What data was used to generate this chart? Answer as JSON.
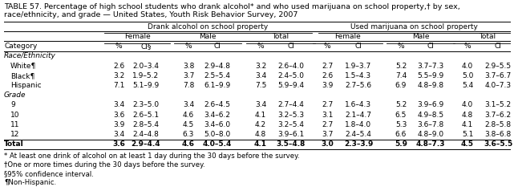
{
  "title_line1": "TABLE 57. Percentage of high school students who drank alcohol* and who used marijuana on school property,† by sex,",
  "title_line2": "race/ethnicity, and grade — United States, Youth Risk Behavior Survey, 2007",
  "col_group1": "Drank alcohol on school property",
  "col_group2": "Used marijuana on school property",
  "sub_groups": [
    "Female",
    "Male",
    "Total",
    "Female",
    "Male",
    "Total"
  ],
  "header_pct_ci": [
    "Category",
    "%",
    "CI§",
    "%",
    "CI",
    "%",
    "CI",
    "%",
    "CI",
    "%",
    "CI",
    "%",
    "CI"
  ],
  "section_race": "Race/Ethnicity",
  "section_grade": "Grade",
  "rows": [
    [
      "White¶",
      "2.6",
      "2.0–3.4",
      "3.8",
      "2.9–4.8",
      "3.2",
      "2.6–4.0",
      "2.7",
      "1.9–3.7",
      "5.2",
      "3.7–7.3",
      "4.0",
      "2.9–5.5"
    ],
    [
      "Black¶",
      "3.2",
      "1.9–5.2",
      "3.7",
      "2.5–5.4",
      "3.4",
      "2.4–5.0",
      "2.6",
      "1.5–4.3",
      "7.4",
      "5.5–9.9",
      "5.0",
      "3.7–6.7"
    ],
    [
      "Hispanic",
      "7.1",
      "5.1–9.9",
      "7.8",
      "6.1–9.9",
      "7.5",
      "5.9–9.4",
      "3.9",
      "2.7–5.6",
      "6.9",
      "4.8–9.8",
      "5.4",
      "4.0–7.3"
    ],
    [
      "9",
      "3.4",
      "2.3–5.0",
      "3.4",
      "2.6–4.5",
      "3.4",
      "2.7–4.4",
      "2.7",
      "1.6–4.3",
      "5.2",
      "3.9–6.9",
      "4.0",
      "3.1–5.2"
    ],
    [
      "10",
      "3.6",
      "2.6–5.1",
      "4.6",
      "3.4–6.2",
      "4.1",
      "3.2–5.3",
      "3.1",
      "2.1–4.7",
      "6.5",
      "4.9–8.5",
      "4.8",
      "3.7–6.2"
    ],
    [
      "11",
      "3.9",
      "2.8–5.4",
      "4.5",
      "3.4–6.0",
      "4.2",
      "3.2–5.4",
      "2.7",
      "1.8–4.0",
      "5.3",
      "3.6–7.8",
      "4.1",
      "2.8–5.8"
    ],
    [
      "12",
      "3.4",
      "2.4–4.8",
      "6.3",
      "5.0–8.0",
      "4.8",
      "3.9–6.1",
      "3.7",
      "2.4–5.4",
      "6.6",
      "4.8–9.0",
      "5.1",
      "3.8–6.8"
    ]
  ],
  "total_row": [
    "Total",
    "3.6",
    "2.9–4.4",
    "4.6",
    "4.0–5.4",
    "4.1",
    "3.5–4.8",
    "3.0",
    "2.3–3.9",
    "5.9",
    "4.8–7.3",
    "4.5",
    "3.6–5.5"
  ],
  "footnotes": [
    "* At least one drink of alcohol on at least 1 day during the 30 days before the survey.",
    "†One or more times during the 30 days before the survey.",
    "§95% confidence interval.",
    "¶Non-Hispanic."
  ],
  "bg_color": "#ffffff",
  "font_size": 6.5,
  "title_font_size": 6.8
}
